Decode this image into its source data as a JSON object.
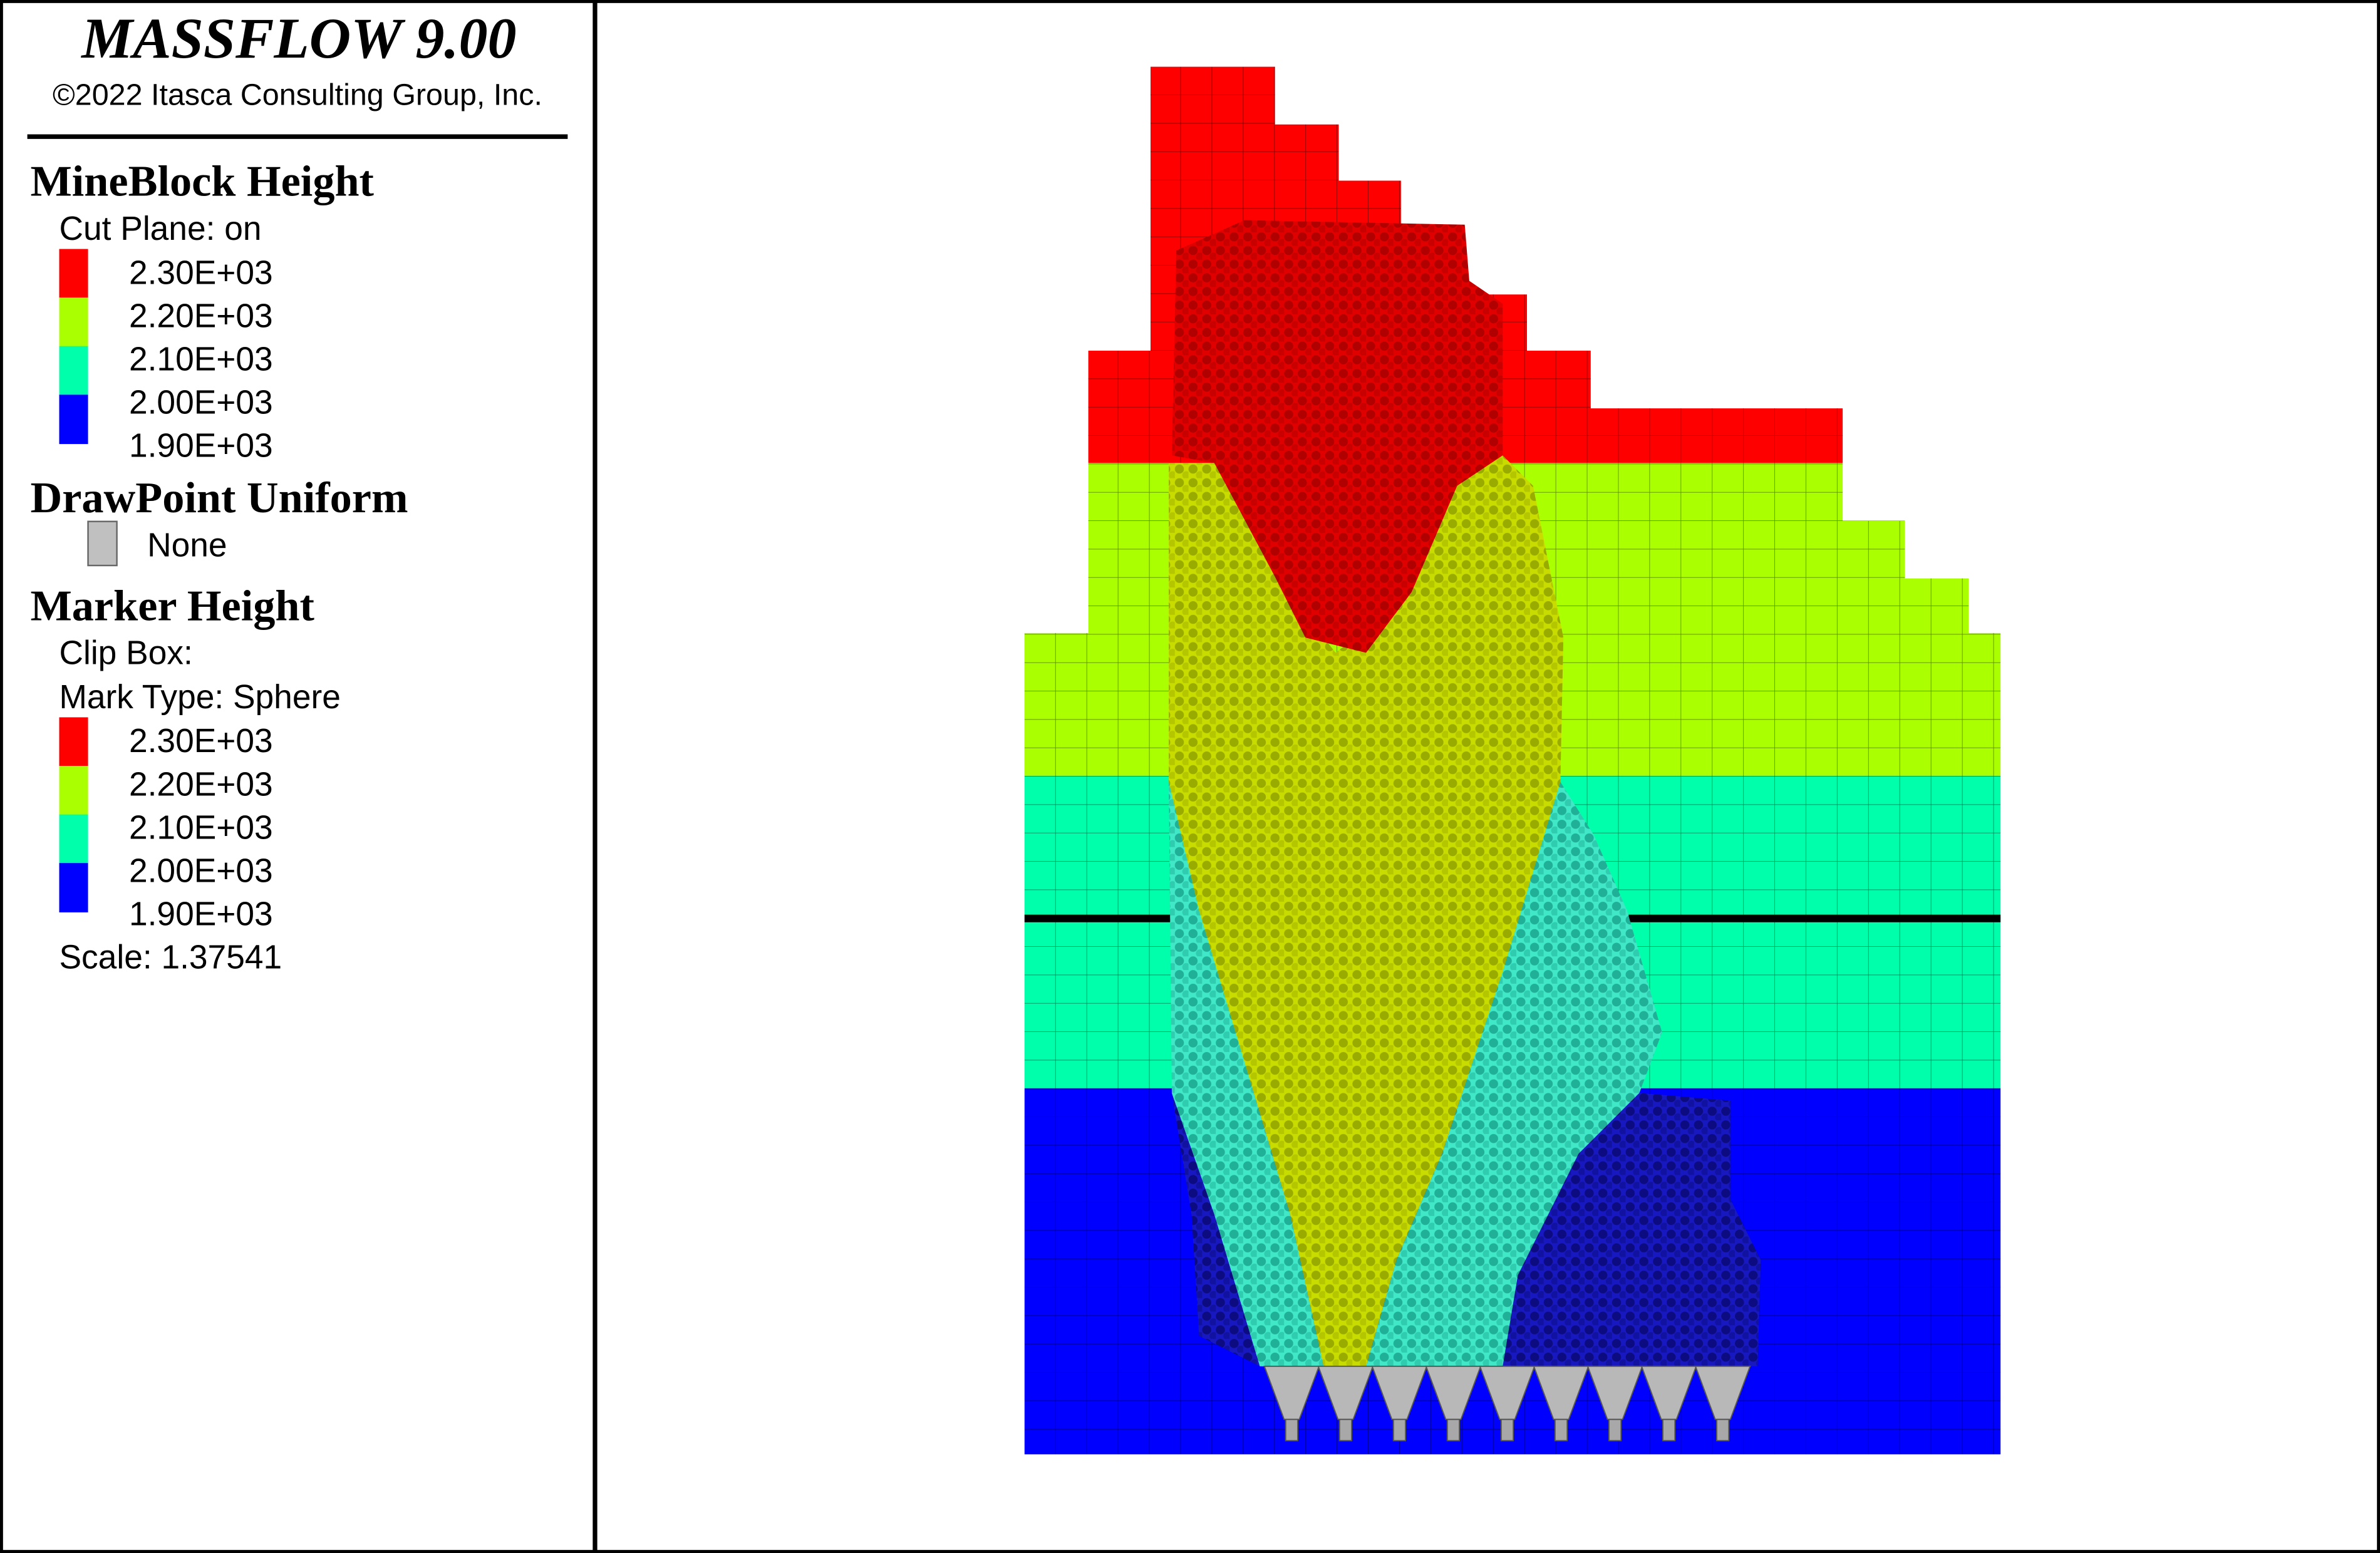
{
  "header": {
    "title": "MASSFLOW 9.00",
    "copyright": "©2022 Itasca Consulting Group, Inc."
  },
  "legend": [
    {
      "title": "MineBlock Height",
      "lines": [
        "Cut Plane: on"
      ],
      "colors": [
        "#ff0000",
        "#aaff00",
        "#00ffaa",
        "#0000ff"
      ],
      "labels": [
        "2.30E+03",
        "2.20E+03",
        "2.10E+03",
        "2.00E+03",
        "1.90E+03"
      ]
    },
    {
      "title": "DrawPoint Uniform",
      "swatch": "#c0c0c0",
      "swatch_label": "None"
    },
    {
      "title": "Marker Height",
      "lines": [
        "Clip Box:",
        "Mark Type: Sphere"
      ],
      "colors": [
        "#ff0000",
        "#aaff00",
        "#00ffaa",
        "#0000ff"
      ],
      "labels": [
        "2.30E+03",
        "2.20E+03",
        "2.10E+03",
        "2.00E+03",
        "1.90E+03"
      ],
      "footer": "Scale: 1.37541"
    }
  ]
}
